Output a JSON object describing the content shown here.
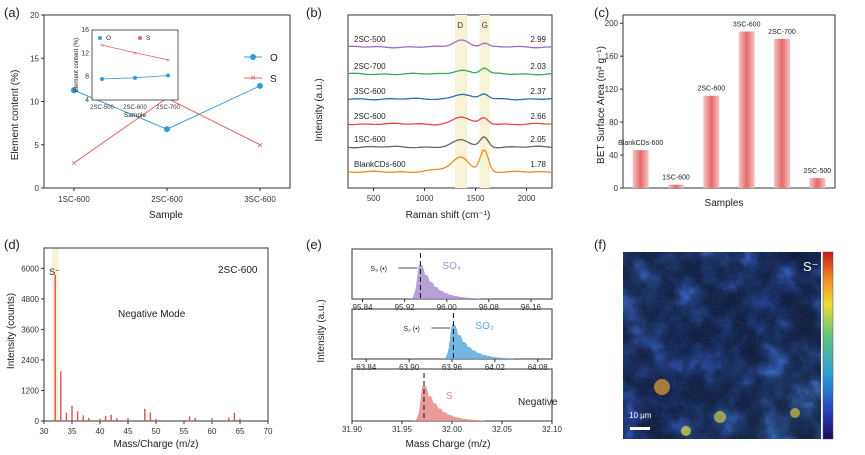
{
  "panels": {
    "a": "(a)",
    "b": "(b)",
    "c": "(c)",
    "d": "(d)",
    "e": "(e)",
    "f": "(f)"
  },
  "chart_data": [
    {
      "id": "a",
      "type": "line",
      "xlabel": "Sample",
      "ylabel": "Element content (%)",
      "categories": [
        "1SC-600",
        "2SC-600",
        "3SC-600"
      ],
      "ylim": [
        0,
        20
      ],
      "yticks": [
        "0",
        "5",
        "10",
        "15",
        "20"
      ],
      "series": [
        {
          "name": "O",
          "color": "#3a9ad9",
          "marker": "circle",
          "values": [
            11.3,
            6.8,
            11.8
          ]
        },
        {
          "name": "S",
          "color": "#e06666",
          "marker": "x",
          "values": [
            2.9,
            10.4,
            5.0
          ]
        }
      ],
      "inset": {
        "xlabel": "Sample",
        "ylabel": "Element content (%)",
        "categories": [
          "2SC-500",
          "2SC-600",
          "2SC-700"
        ],
        "ylim": [
          4,
          16
        ],
        "yticks": [
          "4",
          "8",
          "12",
          "16"
        ],
        "series": [
          {
            "name": "O",
            "color": "#3a9ad9",
            "values": [
              7.6,
              7.8,
              8.2
            ]
          },
          {
            "name": "S",
            "color": "#e06666",
            "values": [
              13.4,
              12.1,
              10.9
            ]
          }
        ]
      }
    },
    {
      "id": "b",
      "type": "line",
      "xlabel": "Raman shift (cm⁻¹)",
      "ylabel": "Intensity (a.u.)",
      "xlim": [
        250,
        2250
      ],
      "xticks": [
        "500",
        "1000",
        "1500",
        "2000"
      ],
      "bands": [
        "D",
        "G"
      ],
      "series": [
        {
          "name": "2SC-500",
          "ratio": "2.99",
          "color": "#9b6fc0"
        },
        {
          "name": "2SC-700",
          "ratio": "2.03",
          "color": "#3aa85a"
        },
        {
          "name": "3SC-600",
          "ratio": "2.37",
          "color": "#2e6db8"
        },
        {
          "name": "2SC-600",
          "ratio": "2.66",
          "color": "#e04848"
        },
        {
          "name": "1SC-600",
          "ratio": "2.05",
          "color": "#666666"
        },
        {
          "name": "BlankCDs-600",
          "ratio": "1.78",
          "color": "#f08a24"
        }
      ]
    },
    {
      "id": "c",
      "type": "bar",
      "xlabel": "Samples",
      "ylabel": "BET Surface Area (m² g⁻¹)",
      "ylim": [
        0,
        210
      ],
      "yticks": [
        "0",
        "40",
        "80",
        "120",
        "160",
        "200"
      ],
      "categories": [
        "BlankCDs-600",
        "1SC-600",
        "2SC-600",
        "3SC-600",
        "2SC-700",
        "2SC-500"
      ],
      "values": [
        46,
        4,
        112,
        190,
        181,
        12
      ]
    },
    {
      "id": "d",
      "type": "bar",
      "title": "2SC-600",
      "annotation": "Negative Mode",
      "peak_label": "S⁻",
      "xlabel": "Mass/Charge (m/z)",
      "ylabel": "Intensity (counts)",
      "xlim": [
        30,
        70
      ],
      "ylim": [
        0,
        6800
      ],
      "xticks": [
        "30",
        "35",
        "40",
        "45",
        "50",
        "55",
        "60",
        "65",
        "70"
      ],
      "yticks": [
        "0",
        "1200",
        "2400",
        "3600",
        "4800",
        "6000"
      ],
      "peaks": [
        {
          "mz": 32,
          "y": 5750
        },
        {
          "mz": 33,
          "y": 1950
        },
        {
          "mz": 34,
          "y": 330
        },
        {
          "mz": 35,
          "y": 600
        },
        {
          "mz": 36,
          "y": 380
        },
        {
          "mz": 37,
          "y": 220
        },
        {
          "mz": 38,
          "y": 120
        },
        {
          "mz": 40,
          "y": 90
        },
        {
          "mz": 41,
          "y": 200
        },
        {
          "mz": 42,
          "y": 240
        },
        {
          "mz": 43,
          "y": 110
        },
        {
          "mz": 45,
          "y": 120
        },
        {
          "mz": 48,
          "y": 480
        },
        {
          "mz": 49,
          "y": 330
        },
        {
          "mz": 50,
          "y": 80
        },
        {
          "mz": 56,
          "y": 180
        },
        {
          "mz": 57,
          "y": 120
        },
        {
          "mz": 60,
          "y": 110
        },
        {
          "mz": 63,
          "y": 140
        },
        {
          "mz": 64,
          "y": 320
        },
        {
          "mz": 65,
          "y": 90
        }
      ]
    },
    {
      "id": "e",
      "type": "area",
      "xlabel": "Mass Charge (m/z)",
      "ylabel": "Intensity (a.u.)",
      "annotation": "Negative",
      "subplots": [
        {
          "species": "SO₄",
          "marker": "S₃ (•)",
          "color": "#a98fd0",
          "xticks": [
            "95.84",
            "95.92",
            "96.00",
            "96.08",
            "96.16"
          ],
          "xlim": [
            95.82,
            96.2
          ],
          "peak": 95.95
        },
        {
          "species": "SO₂",
          "marker": "S₂ (•)",
          "color": "#5ba9df",
          "xticks": [
            "63.84",
            "63.90",
            "63.96",
            "64.02",
            "64.08"
          ],
          "xlim": [
            63.82,
            64.1
          ],
          "peak": 63.962
        },
        {
          "species": "S",
          "marker": "",
          "color": "#e88888",
          "xticks": [
            "31.90",
            "31.95",
            "32.00",
            "32.05",
            "32.10"
          ],
          "xlim": [
            31.9,
            32.1
          ],
          "peak": 31.972
        }
      ]
    }
  ],
  "map_f": {
    "label": "S⁻",
    "scale": "10 μm"
  }
}
